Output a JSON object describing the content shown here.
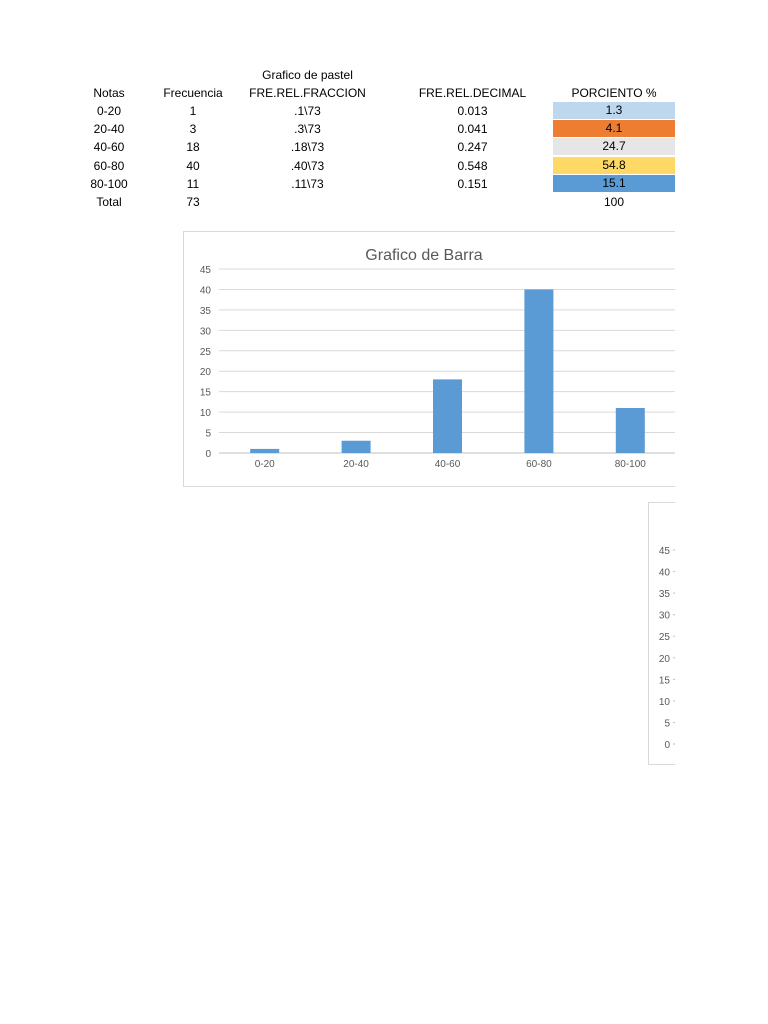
{
  "table": {
    "super_header": "Grafico de pastel",
    "headers": [
      "Notas",
      "Frecuencia",
      "FRE.REL.FRACCION",
      "FRE.REL.DECIMAL",
      "PORCIENTO  %"
    ],
    "rows": [
      {
        "notas": "0-20",
        "frecuencia": "1",
        "fraccion": ".1\\73",
        "decimal": "0.013",
        "porciento": "1.3",
        "color": "#bdd7ee"
      },
      {
        "notas": "20-40",
        "frecuencia": "3",
        "fraccion": ".3\\73",
        "decimal": "0.041",
        "porciento": "4.1",
        "color": "#ed7d31"
      },
      {
        "notas": "40-60",
        "frecuencia": "18",
        "fraccion": ".18\\73",
        "decimal": "0.247",
        "porciento": "24.7",
        "color": "#e7e6e6"
      },
      {
        "notas": "60-80",
        "frecuencia": "40",
        "fraccion": ".40\\73",
        "decimal": "0.548",
        "porciento": "54.8",
        "color": "#ffd966"
      },
      {
        "notas": "80-100",
        "frecuencia": "11",
        "fraccion": ".11\\73",
        "decimal": "0.151",
        "porciento": "15.1",
        "color": "#5b9bd5"
      }
    ],
    "total": {
      "label": "Total",
      "frecuencia": "73",
      "porciento": "100"
    }
  },
  "chart_data": [
    {
      "type": "bar",
      "title": "Grafico de Barra",
      "categories": [
        "0-20",
        "20-40",
        "40-60",
        "60-80",
        "80-100"
      ],
      "values": [
        1,
        3,
        18,
        40,
        11
      ],
      "ylim": [
        0,
        45
      ],
      "yticks": [
        0,
        5,
        10,
        15,
        20,
        25,
        30,
        35,
        40,
        45
      ],
      "grid": true,
      "bar_color": "#5b9bd5",
      "xlabel": "",
      "ylabel": ""
    },
    {
      "type": "bar",
      "title": "",
      "categories": [],
      "values": [],
      "ylim": [
        0,
        45
      ],
      "yticks": [
        0,
        5,
        10,
        15,
        20,
        25,
        30,
        35,
        40,
        45
      ],
      "grid": true
    }
  ]
}
